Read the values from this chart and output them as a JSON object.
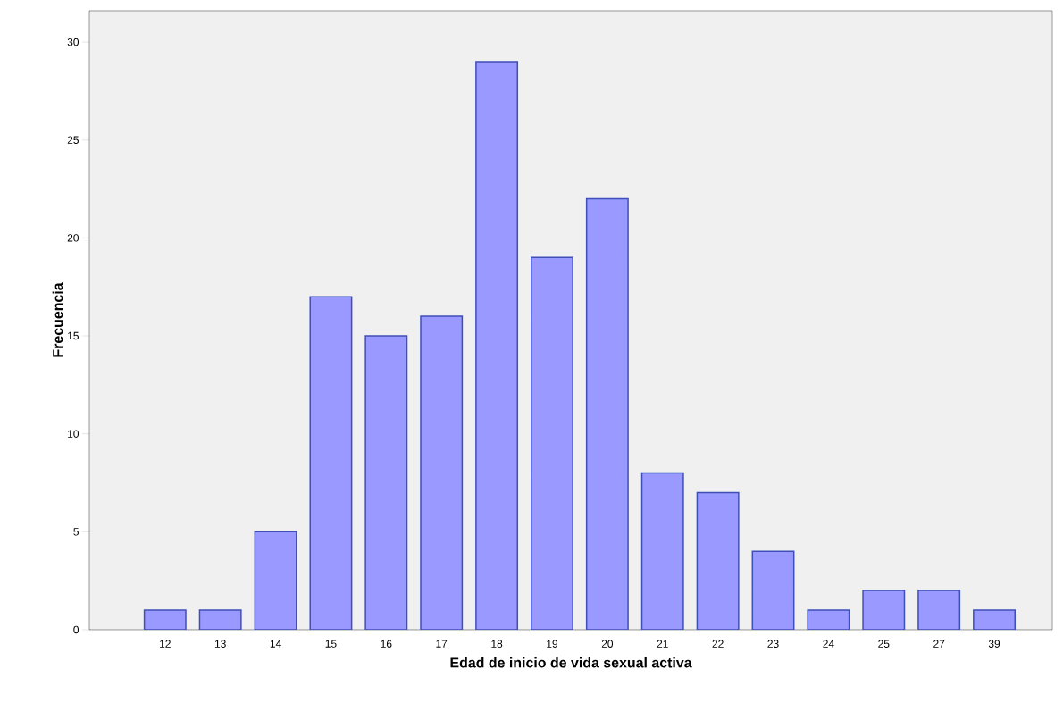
{
  "chart_data": {
    "type": "bar",
    "xlabel": "Edad de inicio de vida sexual activa",
    "ylabel": "Frecuencia",
    "categories": [
      "12",
      "13",
      "14",
      "15",
      "16",
      "17",
      "18",
      "19",
      "20",
      "21",
      "22",
      "23",
      "24",
      "25",
      "27",
      "39"
    ],
    "values": [
      1,
      1,
      5,
      17,
      15,
      16,
      29,
      19,
      22,
      8,
      7,
      4,
      1,
      2,
      2,
      1
    ],
    "color": "#9999ff",
    "ylim": [
      0,
      31.6
    ],
    "yticks": [
      0,
      5,
      10,
      15,
      20,
      25,
      30
    ],
    "grid": false
  }
}
